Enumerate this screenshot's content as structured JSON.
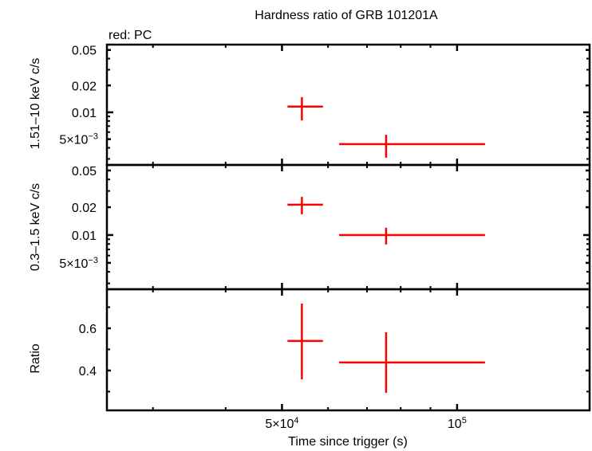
{
  "chart_data": {
    "type": "scatter",
    "title": "Hardness ratio of GRB 101201A",
    "legend_note": "red: PC",
    "xlabel": "Time since trigger (s)",
    "xscale": "log",
    "xlim": [
      25000,
      169000
    ],
    "x_ticks": [
      {
        "value": 50000,
        "label_base": "5×10",
        "label_exp": "4"
      },
      {
        "value": 100000,
        "label_base": "10",
        "label_exp": "5"
      }
    ],
    "x_minor_ticks": [
      30000,
      40000,
      60000,
      70000,
      80000,
      90000
    ],
    "series_color": "#ff0000",
    "panels": [
      {
        "name": "hard-band",
        "ylabel": "1.51–10 keV c/s",
        "yscale": "log",
        "ylim": [
          0.00257,
          0.0574
        ],
        "y_ticks": [
          {
            "value": 0.05,
            "label": "0.05"
          },
          {
            "value": 0.02,
            "label": "0.02"
          },
          {
            "value": 0.01,
            "label": "0.01"
          },
          {
            "value": 0.005,
            "label_base": "5×10",
            "label_exp": "−3"
          }
        ],
        "y_minor_ticks": [
          0.003,
          0.004,
          0.006,
          0.007,
          0.008,
          0.009,
          0.03,
          0.04
        ],
        "points": [
          {
            "x": 54100,
            "x_lo": 51100,
            "x_hi": 58800,
            "y": 0.0116,
            "y_lo": 0.0081,
            "y_hi": 0.0148
          },
          {
            "x": 75500,
            "x_lo": 62700,
            "x_hi": 111700,
            "y": 0.0044,
            "y_lo": 0.0031,
            "y_hi": 0.0056
          }
        ]
      },
      {
        "name": "soft-band",
        "ylabel": "0.3–1.5 keV c/s",
        "yscale": "log",
        "ylim": [
          0.00259,
          0.0574
        ],
        "y_ticks": [
          {
            "value": 0.05,
            "label": "0.05"
          },
          {
            "value": 0.02,
            "label": "0.02"
          },
          {
            "value": 0.01,
            "label": "0.01"
          },
          {
            "value": 0.005,
            "label_base": "5×10",
            "label_exp": "−3"
          }
        ],
        "y_minor_ticks": [
          0.003,
          0.004,
          0.006,
          0.007,
          0.008,
          0.009,
          0.03,
          0.04
        ],
        "points": [
          {
            "x": 54100,
            "x_lo": 51100,
            "x_hi": 58800,
            "y": 0.0213,
            "y_lo": 0.0168,
            "y_hi": 0.0259
          },
          {
            "x": 75500,
            "x_lo": 62700,
            "x_hi": 111700,
            "y": 0.01,
            "y_lo": 0.0079,
            "y_hi": 0.012
          }
        ]
      },
      {
        "name": "ratio",
        "ylabel": "Ratio",
        "yscale": "linear",
        "ylim": [
          0.211,
          0.785
        ],
        "y_ticks": [
          {
            "value": 0.6,
            "label": "0.6"
          },
          {
            "value": 0.4,
            "label": "0.4"
          }
        ],
        "y_minor_ticks": [
          0.3,
          0.5,
          0.7
        ],
        "points": [
          {
            "x": 54100,
            "x_lo": 51100,
            "x_hi": 58800,
            "y": 0.54,
            "y_lo": 0.358,
            "y_hi": 0.717
          },
          {
            "x": 75500,
            "x_lo": 62700,
            "x_hi": 111700,
            "y": 0.438,
            "y_lo": 0.294,
            "y_hi": 0.581
          }
        ]
      }
    ]
  }
}
